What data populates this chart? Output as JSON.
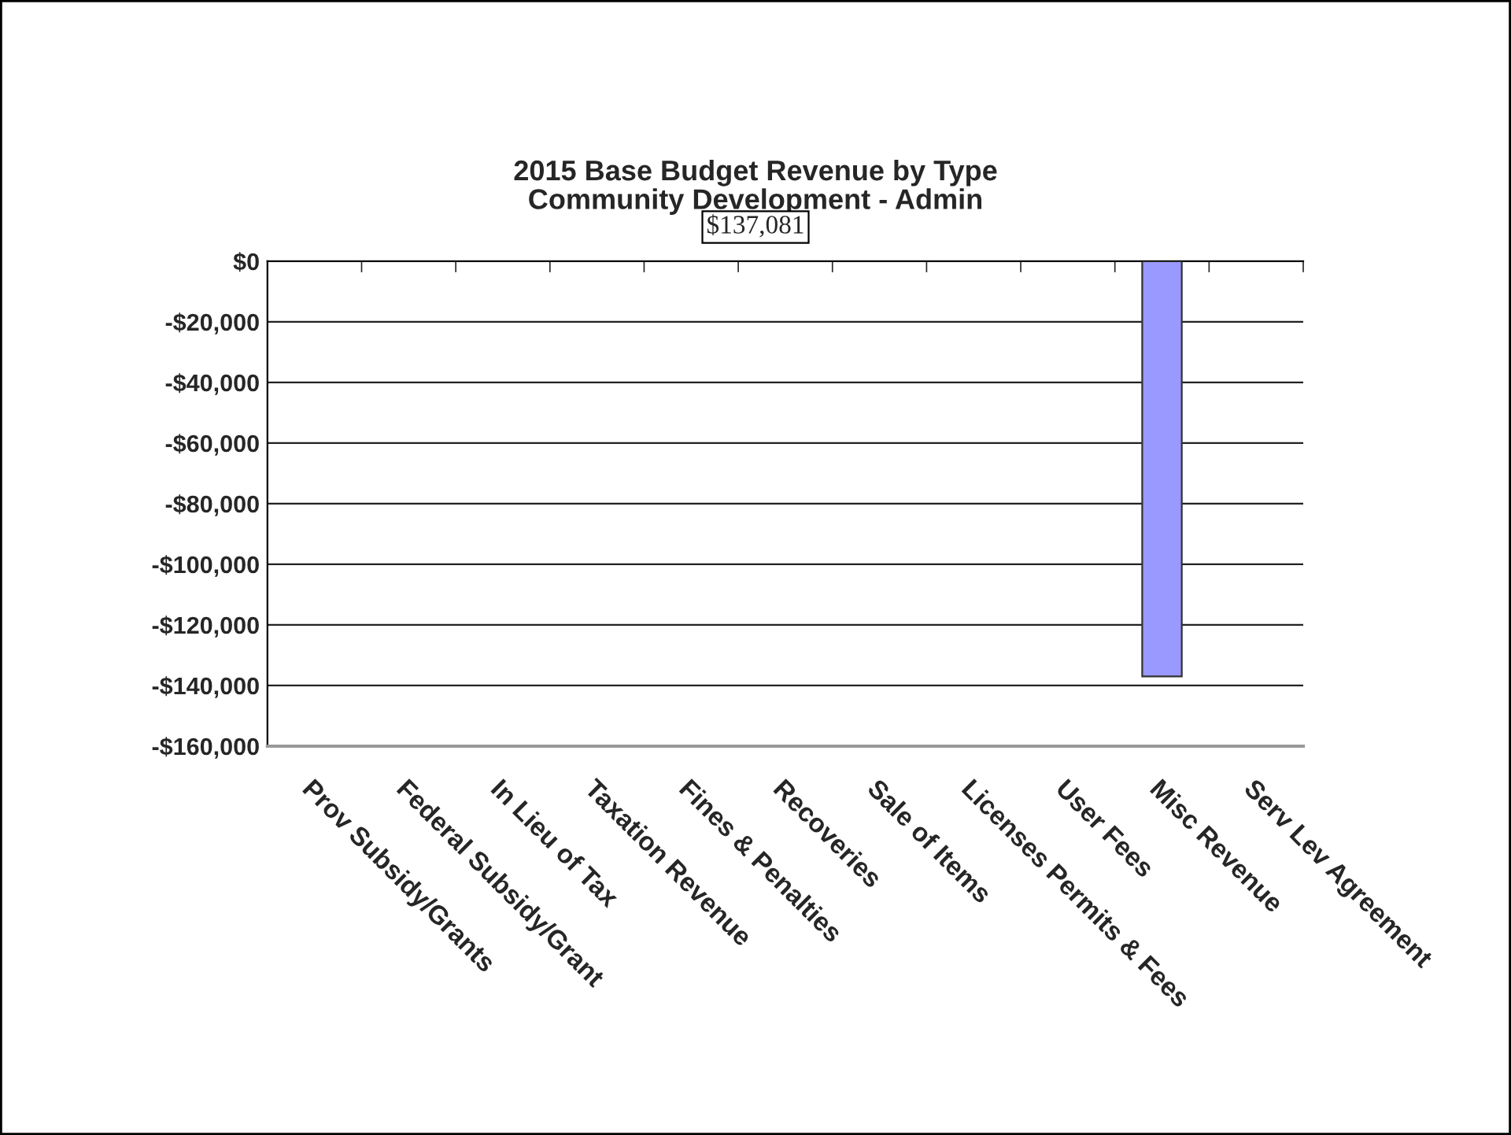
{
  "chart_data": {
    "type": "bar",
    "title": "2015 Base Budget Revenue by Type\nCommunity Development - Admin",
    "annotations": [
      "$137,081"
    ],
    "categories": [
      "Prov Subsidy/Grants",
      "Federal Subsidy/Grant",
      "In Lieu of Tax",
      "Taxation Revenue",
      "Fines & Penalties",
      "Recoveries",
      "Sale of Items",
      "Licenses Permits & Fees",
      "User Fees",
      "Misc Revenue",
      "Serv Lev Agreement"
    ],
    "values": [
      null,
      null,
      null,
      null,
      null,
      null,
      null,
      null,
      null,
      -137000,
      null
    ],
    "color": "#9999ff",
    "ylim": [
      -160000,
      0
    ],
    "yticks": [
      {
        "value": 0,
        "label": "$0"
      },
      {
        "value": -20000,
        "label": "-$20,000"
      },
      {
        "value": -40000,
        "label": "-$40,000"
      },
      {
        "value": -60000,
        "label": "-$60,000"
      },
      {
        "value": -80000,
        "label": "-$80,000"
      },
      {
        "value": -100000,
        "label": "-$100,000"
      },
      {
        "value": -120000,
        "label": "-$120,000"
      },
      {
        "value": -140000,
        "label": "-$140,000"
      },
      {
        "value": -160000,
        "label": "-$160,000"
      }
    ],
    "grid": "y",
    "legend": false
  }
}
